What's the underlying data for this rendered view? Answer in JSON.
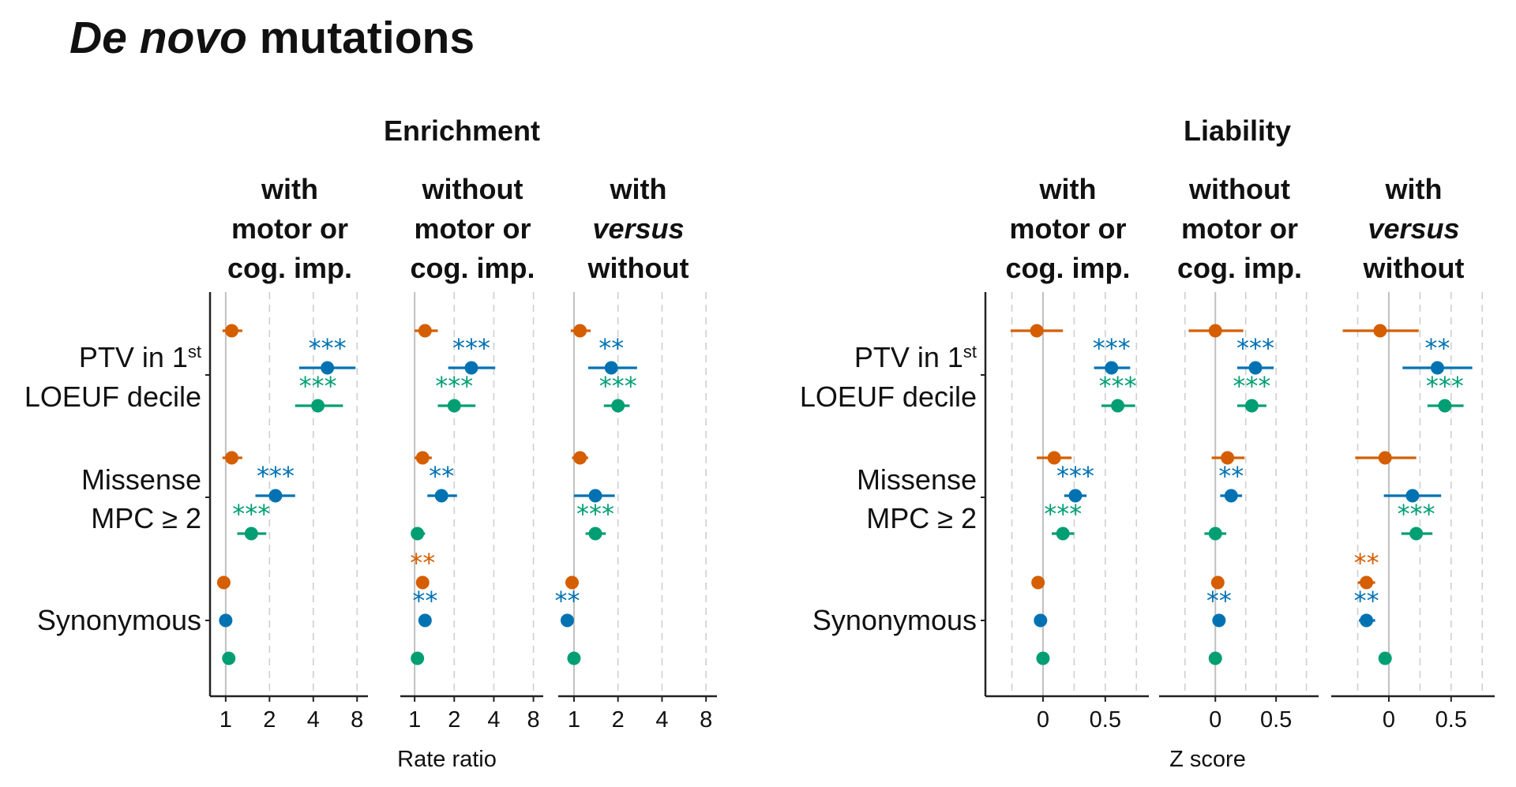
{
  "colors": {
    "with_motor": "#d55e00",
    "without_motor": "#0072b2",
    "versus": "#009e73",
    "ref_line": "#c0c0c0",
    "grid": "#cfcfcf",
    "axis": "#222222"
  },
  "figure": {
    "title_italic": "De novo",
    "title_rest": " mutations"
  },
  "chart_data": [
    {
      "type": "forest",
      "title": "Enrichment",
      "xlabel": "Rate ratio",
      "scale": "log2",
      "xlim": [
        0.8,
        9.5
      ],
      "ticks": [
        1,
        2,
        4,
        8
      ],
      "tick_labels": [
        "1",
        "2",
        "4",
        "8"
      ],
      "grid": "dashed vertical at 2, 4, 8",
      "ref_value": 1,
      "row_labels": [
        {
          "lines": [
            {
              "text": "PTV in 1",
              "sup": "st"
            },
            {
              "text": "LOEUF decile"
            }
          ]
        },
        {
          "lines": [
            {
              "text": "Missense"
            },
            {
              "text": "MPC ≥ 2"
            }
          ]
        },
        {
          "lines": [
            {
              "text": "Synonymous"
            }
          ]
        }
      ],
      "facets": [
        {
          "label_lines": [
            [
              "with"
            ],
            [
              "motor or"
            ],
            [
              "cog. imp."
            ]
          ],
          "rows": [
            [
              {
                "est": 1.1,
                "lo": 0.95,
                "hi": 1.3,
                "stars": ""
              },
              {
                "est": 5.0,
                "lo": 3.2,
                "hi": 7.8,
                "stars": "***"
              },
              {
                "est": 4.3,
                "lo": 3.0,
                "hi": 6.4,
                "stars": "***"
              }
            ],
            [
              {
                "est": 1.1,
                "lo": 0.95,
                "hi": 1.3,
                "stars": ""
              },
              {
                "est": 2.2,
                "lo": 1.6,
                "hi": 3.0,
                "stars": "***"
              },
              {
                "est": 1.5,
                "lo": 1.2,
                "hi": 1.9,
                "stars": "***"
              }
            ],
            [
              {
                "est": 0.97,
                "lo": 0.97,
                "hi": 0.97,
                "stars": ""
              },
              {
                "est": 1.0,
                "lo": 1.0,
                "hi": 1.0,
                "stars": ""
              },
              {
                "est": 1.05,
                "lo": 1.05,
                "hi": 1.05,
                "stars": ""
              }
            ]
          ]
        },
        {
          "label_lines": [
            [
              "without"
            ],
            [
              "motor or"
            ],
            [
              "cog. imp."
            ]
          ],
          "rows": [
            [
              {
                "est": 1.2,
                "lo": 1.0,
                "hi": 1.5,
                "stars": ""
              },
              {
                "est": 2.7,
                "lo": 1.8,
                "hi": 4.1,
                "stars": "***"
              },
              {
                "est": 2.0,
                "lo": 1.5,
                "hi": 2.9,
                "stars": "***"
              }
            ],
            [
              {
                "est": 1.15,
                "lo": 1.0,
                "hi": 1.35,
                "stars": ""
              },
              {
                "est": 1.6,
                "lo": 1.25,
                "hi": 2.1,
                "stars": "**"
              },
              {
                "est": 1.05,
                "lo": 0.95,
                "hi": 1.2,
                "stars": ""
              }
            ],
            [
              {
                "est": 1.15,
                "lo": 1.15,
                "hi": 1.15,
                "stars": "**"
              },
              {
                "est": 1.2,
                "lo": 1.2,
                "hi": 1.2,
                "stars": "**"
              },
              {
                "est": 1.05,
                "lo": 1.05,
                "hi": 1.05,
                "stars": ""
              }
            ]
          ]
        },
        {
          "label_lines": [
            [
              "with"
            ],
            [
              "versus",
              "italic"
            ],
            [
              "without"
            ]
          ],
          "rows": [
            [
              {
                "est": 1.1,
                "lo": 0.95,
                "hi": 1.3,
                "stars": ""
              },
              {
                "est": 1.8,
                "lo": 1.25,
                "hi": 2.7,
                "stars": "**"
              },
              {
                "est": 2.0,
                "lo": 1.6,
                "hi": 2.4,
                "stars": "***"
              }
            ],
            [
              {
                "est": 1.1,
                "lo": 0.97,
                "hi": 1.25,
                "stars": ""
              },
              {
                "est": 1.4,
                "lo": 1.0,
                "hi": 1.9,
                "stars": ""
              },
              {
                "est": 1.4,
                "lo": 1.2,
                "hi": 1.65,
                "stars": "***"
              }
            ],
            [
              {
                "est": 0.97,
                "lo": 0.97,
                "hi": 0.97,
                "stars": ""
              },
              {
                "est": 0.9,
                "lo": 0.9,
                "hi": 0.9,
                "stars": "**"
              },
              {
                "est": 1.0,
                "lo": 1.0,
                "hi": 1.0,
                "stars": ""
              }
            ]
          ]
        }
      ]
    },
    {
      "type": "forest",
      "title": "Liability",
      "xlabel": "Z score",
      "scale": "linear",
      "xlim": [
        -0.45,
        0.85
      ],
      "ticks": [
        0,
        0.5
      ],
      "tick_labels": [
        "0",
        "0.5"
      ],
      "grid": "dashed vertical at -0.25, 0.25, 0.5, 0.75",
      "ref_value": 0,
      "row_labels": [
        {
          "lines": [
            {
              "text": "PTV in 1",
              "sup": "st"
            },
            {
              "text": "LOEUF decile"
            }
          ]
        },
        {
          "lines": [
            {
              "text": "Missense"
            },
            {
              "text": "MPC ≥ 2"
            }
          ]
        },
        {
          "lines": [
            {
              "text": "Synonymous"
            }
          ]
        }
      ],
      "facets": [
        {
          "label_lines": [
            [
              "with"
            ],
            [
              "motor or"
            ],
            [
              "cog. imp."
            ]
          ],
          "rows": [
            [
              {
                "est": -0.05,
                "lo": -0.26,
                "hi": 0.16,
                "stars": ""
              },
              {
                "est": 0.55,
                "lo": 0.41,
                "hi": 0.7,
                "stars": "***"
              },
              {
                "est": 0.6,
                "lo": 0.47,
                "hi": 0.74,
                "stars": "***"
              }
            ],
            [
              {
                "est": 0.09,
                "lo": -0.05,
                "hi": 0.23,
                "stars": ""
              },
              {
                "est": 0.26,
                "lo": 0.17,
                "hi": 0.35,
                "stars": "***"
              },
              {
                "est": 0.16,
                "lo": 0.07,
                "hi": 0.25,
                "stars": "***"
              }
            ],
            [
              {
                "est": -0.04,
                "lo": -0.07,
                "hi": -0.01,
                "stars": ""
              },
              {
                "est": -0.02,
                "lo": -0.02,
                "hi": -0.02,
                "stars": ""
              },
              {
                "est": 0.0,
                "lo": 0.0,
                "hi": 0.0,
                "stars": ""
              }
            ]
          ]
        },
        {
          "label_lines": [
            [
              "without"
            ],
            [
              "motor or"
            ],
            [
              "cog. imp."
            ]
          ],
          "rows": [
            [
              {
                "est": 0.0,
                "lo": -0.22,
                "hi": 0.23,
                "stars": ""
              },
              {
                "est": 0.33,
                "lo": 0.18,
                "hi": 0.48,
                "stars": "***"
              },
              {
                "est": 0.3,
                "lo": 0.18,
                "hi": 0.42,
                "stars": "***"
              }
            ],
            [
              {
                "est": 0.1,
                "lo": -0.03,
                "hi": 0.24,
                "stars": ""
              },
              {
                "est": 0.13,
                "lo": 0.04,
                "hi": 0.22,
                "stars": "**"
              },
              {
                "est": 0.0,
                "lo": -0.09,
                "hi": 0.09,
                "stars": ""
              }
            ],
            [
              {
                "est": 0.02,
                "lo": 0.02,
                "hi": 0.02,
                "stars": ""
              },
              {
                "est": 0.03,
                "lo": 0.03,
                "hi": 0.03,
                "stars": "**"
              },
              {
                "est": 0.0,
                "lo": 0.0,
                "hi": 0.0,
                "stars": ""
              }
            ]
          ]
        },
        {
          "label_lines": [
            [
              "with"
            ],
            [
              "versus",
              "italic"
            ],
            [
              "without"
            ]
          ],
          "rows": [
            [
              {
                "est": -0.07,
                "lo": -0.37,
                "hi": 0.24,
                "stars": ""
              },
              {
                "est": 0.39,
                "lo": 0.11,
                "hi": 0.67,
                "stars": "**"
              },
              {
                "est": 0.45,
                "lo": 0.31,
                "hi": 0.6,
                "stars": "***"
              }
            ],
            [
              {
                "est": -0.03,
                "lo": -0.27,
                "hi": 0.22,
                "stars": ""
              },
              {
                "est": 0.19,
                "lo": -0.04,
                "hi": 0.42,
                "stars": ""
              },
              {
                "est": 0.22,
                "lo": 0.1,
                "hi": 0.35,
                "stars": "***"
              }
            ],
            [
              {
                "est": -0.18,
                "lo": -0.25,
                "hi": -0.11,
                "stars": "**"
              },
              {
                "est": -0.18,
                "lo": -0.24,
                "hi": -0.11,
                "stars": "**"
              },
              {
                "est": -0.03,
                "lo": -0.06,
                "hi": 0.0,
                "stars": ""
              }
            ]
          ]
        }
      ]
    }
  ]
}
